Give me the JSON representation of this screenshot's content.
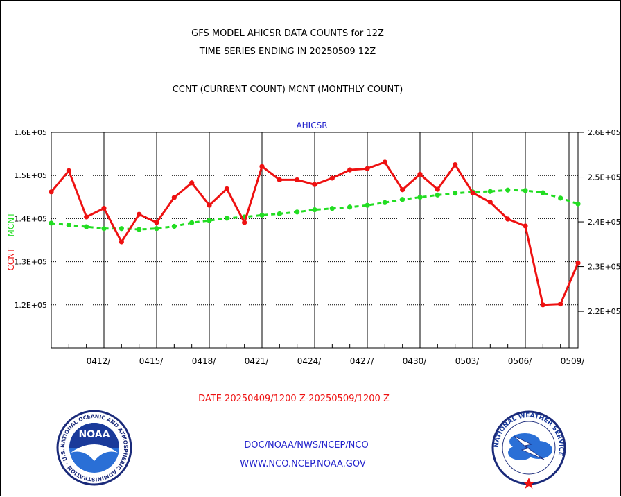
{
  "title_line1": "GFS MODEL AHICSR DATA COUNTS for 12Z",
  "title_line2": "TIME SERIES ENDING IN 20250509 12Z",
  "subtitle": "CCNT (CURRENT COUNT) MCNT (MONTHLY COUNT)",
  "series_label": "AHICSR",
  "ylabel_ccnt": "CCNT",
  "ylabel_mcnt": "MCNT",
  "date_range": "DATE 20250409/1200 Z-20250509/1200 Z",
  "footer_line1": "DOC/NOAA/NWS/NCEP/NCO",
  "footer_line2": "WWW.NCO.NCEP.NOAA.GOV",
  "noaa_logo_text": "NOAA",
  "noaa_ring_text": "NATIONAL OCEANIC AND ATMOSPHERIC ADMINISTRATION · U.S. DEPARTMENT OF COMMERCE ·",
  "nws_ring_text": "NATIONAL WEATHER SERVICE",
  "colors": {
    "ccnt": "#ee1111",
    "mcnt": "#22dd22",
    "label_blue": "#2222cc",
    "axis": "#000000"
  },
  "chart_data": {
    "type": "line",
    "title": "GFS MODEL AHICSR DATA COUNTS for 12Z",
    "x_tick_labels": [
      "0412/",
      "0415/",
      "0418/",
      "0421/",
      "0424/",
      "0427/",
      "0430/",
      "0503/",
      "0506/",
      "0509/"
    ],
    "x_ticks_day": [
      3,
      6,
      9,
      12,
      15,
      18,
      21,
      24,
      27,
      30
    ],
    "xlim": [
      0,
      30
    ],
    "y_left": {
      "ylim": [
        110000,
        160000
      ],
      "tick_values": [
        120000,
        130000,
        140000,
        150000,
        160000
      ],
      "tick_labels": [
        "1.2E+05",
        "1.3E+05",
        "1.4E+05",
        "1.5E+05",
        "1.6E+05"
      ]
    },
    "y_right": {
      "ylim": [
        211800,
        260000
      ],
      "tick_values": [
        220000,
        230000,
        240000,
        250000,
        260000
      ],
      "tick_labels": [
        "2.2E+05",
        "2.3E+05",
        "2.4E+05",
        "2.5E+05",
        "2.6E+05"
      ]
    },
    "grid": "horizontal dotted at y ticks, vertical solid at x ticks",
    "series": [
      {
        "name": "CCNT",
        "axis": "left",
        "line_style": "solid",
        "x": [
          0,
          1,
          2,
          3,
          4,
          5,
          6,
          7,
          8,
          9,
          10,
          11,
          12,
          13,
          14,
          15,
          16,
          17,
          18,
          19,
          20,
          21,
          22,
          23,
          24,
          25,
          26,
          27,
          28,
          29,
          30
        ],
        "values": [
          146200,
          151100,
          140400,
          142400,
          134600,
          141000,
          139100,
          144900,
          148300,
          143100,
          146900,
          139100,
          152100,
          149000,
          149000,
          147900,
          149400,
          151300,
          151600,
          153100,
          146700,
          150300,
          146800,
          152500,
          146000,
          143800,
          139900,
          138300,
          120000,
          120200,
          129700
        ]
      },
      {
        "name": "MCNT",
        "axis": "right",
        "line_style": "dashed",
        "x": [
          0,
          1,
          2,
          3,
          4,
          5,
          6,
          7,
          8,
          9,
          10,
          11,
          12,
          13,
          14,
          15,
          16,
          17,
          18,
          19,
          20,
          21,
          22,
          23,
          24,
          25,
          26,
          27,
          28,
          29,
          30
        ],
        "values": [
          239700,
          239300,
          238900,
          238500,
          238500,
          238300,
          238500,
          239000,
          239800,
          240300,
          240800,
          241100,
          241500,
          241800,
          242200,
          242700,
          243000,
          243300,
          243700,
          244300,
          245000,
          245500,
          246000,
          246400,
          246700,
          246800,
          247100,
          247000,
          246500,
          245300,
          244000
        ]
      }
    ]
  }
}
